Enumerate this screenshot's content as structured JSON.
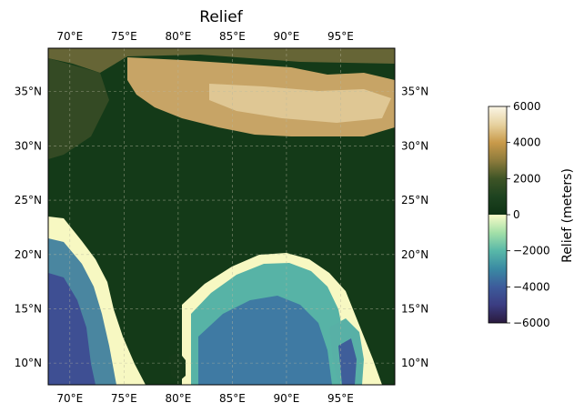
{
  "chart_data": {
    "type": "heatmap",
    "title": "Relief",
    "projection": "PlateCarree",
    "extent": {
      "lon": [
        68,
        100
      ],
      "lat": [
        8,
        39
      ]
    },
    "x_ticks": [
      {
        "value": 70,
        "label": "70°E"
      },
      {
        "value": 75,
        "label": "75°E"
      },
      {
        "value": 80,
        "label": "80°E"
      },
      {
        "value": 85,
        "label": "85°E"
      },
      {
        "value": 90,
        "label": "90°E"
      },
      {
        "value": 95,
        "label": "95°E"
      }
    ],
    "y_ticks": [
      {
        "value": 10,
        "label": "10°N"
      },
      {
        "value": 15,
        "label": "15°N"
      },
      {
        "value": 20,
        "label": "20°N"
      },
      {
        "value": 25,
        "label": "25°N"
      },
      {
        "value": 30,
        "label": "30°N"
      },
      {
        "value": 35,
        "label": "35°N"
      }
    ],
    "grid": true,
    "colorbar": {
      "label": "Relief (meters)",
      "range": [
        -6000,
        6000
      ],
      "ticks": [
        {
          "value": 6000,
          "label": "6000"
        },
        {
          "value": 4000,
          "label": "4000"
        },
        {
          "value": 2000,
          "label": "2000"
        },
        {
          "value": 0,
          "label": "0"
        },
        {
          "value": -2000,
          "label": "−2000"
        },
        {
          "value": -4000,
          "label": "−4000"
        },
        {
          "value": -6000,
          "label": "−6000"
        }
      ],
      "stops": [
        {
          "value": 6000,
          "color": "#fbf6e6"
        },
        {
          "value": 5000,
          "color": "#e7d2a0"
        },
        {
          "value": 4000,
          "color": "#c99a4a"
        },
        {
          "value": 3000,
          "color": "#8d7b3c"
        },
        {
          "value": 2000,
          "color": "#3e5426"
        },
        {
          "value": 1000,
          "color": "#1e4320"
        },
        {
          "value": 1,
          "color": "#0f3315"
        },
        {
          "value": 0,
          "color": "#f9fbc8"
        },
        {
          "value": -1000,
          "color": "#a3e0a8"
        },
        {
          "value": -2000,
          "color": "#58b8a8"
        },
        {
          "value": -3000,
          "color": "#3a8aa3"
        },
        {
          "value": -4000,
          "color": "#3d5b9b"
        },
        {
          "value": -5000,
          "color": "#3b3d82"
        },
        {
          "value": -6000,
          "color": "#2a1a3d"
        }
      ]
    }
  }
}
